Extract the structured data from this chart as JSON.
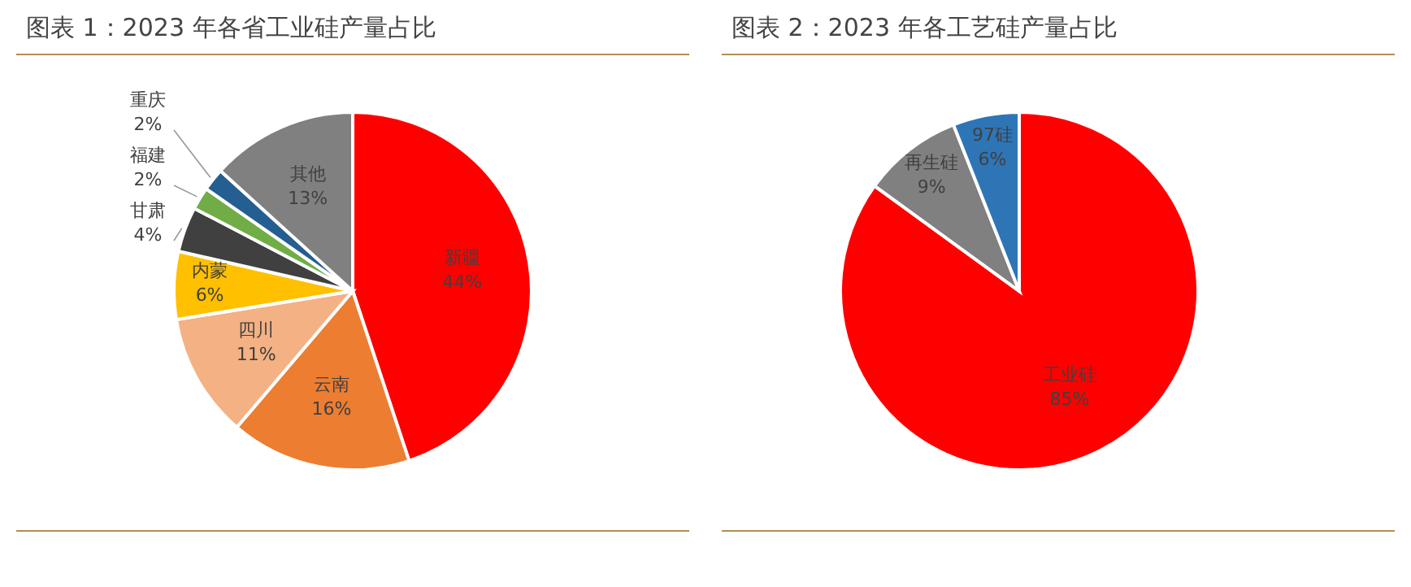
{
  "chart_data": [
    {
      "type": "pie",
      "title": "图表 1：2023 年各省工业硅产量占比",
      "categories": [
        "新疆",
        "云南",
        "四川",
        "内蒙",
        "甘肃",
        "福建",
        "重庆",
        "其他"
      ],
      "values": [
        44,
        16,
        11,
        6,
        4,
        2,
        2,
        13
      ],
      "value_labels": [
        "44%",
        "16%",
        "11%",
        "6%",
        "4%",
        "2%",
        "2%",
        "13%"
      ],
      "colors": [
        "#ff0000",
        "#ed7d31",
        "#f4b183",
        "#ffc000",
        "#404040",
        "#70ad47",
        "#255e91",
        "#808080"
      ],
      "legend": false
    },
    {
      "type": "pie",
      "title": "图表 2：2023 年各工艺硅产量占比",
      "categories": [
        "工业硅",
        "再生硅",
        "97硅"
      ],
      "values": [
        85,
        9,
        6
      ],
      "value_labels": [
        "85%",
        "9%",
        "6%"
      ],
      "colors": [
        "#ff0000",
        "#808080",
        "#2e75b6"
      ],
      "legend": false
    }
  ]
}
